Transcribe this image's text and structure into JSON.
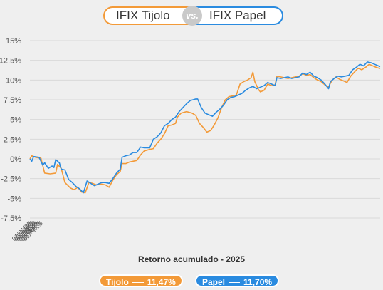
{
  "header": {
    "left_title": "IFIX Tijolo",
    "vs_label": "vs.",
    "right_title": "IFIX Papel"
  },
  "subtitle": "Retorno acumulado - 2025",
  "legend": {
    "tijolo_name": "Tijolo",
    "tijolo_value": "11,47%",
    "papel_name": "Papel",
    "papel_value": "11,70%"
  },
  "colors": {
    "tijolo": "#f39a38",
    "papel": "#2a8be0",
    "grid": "#d9d9d9",
    "axis_text": "#555555"
  },
  "chart_data": {
    "type": "line",
    "title": "",
    "xlabel": "",
    "ylabel": "",
    "x_range": [
      "01/01/25",
      "07/10/25"
    ],
    "ylim": [
      -7.5,
      15
    ],
    "y_ticks": [
      -7.5,
      -5,
      -2.5,
      0,
      2.5,
      5,
      7.5,
      10,
      12.5,
      15
    ],
    "y_tick_labels": [
      "-7,5%",
      "-5%",
      "-2,5%",
      "0%",
      "2,5%",
      "5%",
      "7,5%",
      "10%",
      "12,5%",
      "15%"
    ],
    "x_ticks": [
      "01/01/25",
      "01/02/25",
      "01/03/25",
      "01/04/25",
      "01/05/25",
      "01/06/25",
      "01/07/25"
    ],
    "grid": true,
    "series": [
      {
        "name": "Tijolo",
        "color": "#f39a38",
        "points": [
          [
            "01/01/25",
            0.0
          ],
          [
            "01/02/25",
            0.4
          ],
          [
            "01/04/25",
            0.2
          ],
          [
            "01/07/25",
            0.1
          ],
          [
            "01/09/25",
            -1.8
          ],
          [
            "01/12/25",
            -1.9
          ],
          [
            "01/15/25",
            -1.8
          ],
          [
            "01/16/25",
            -0.7
          ],
          [
            "01/18/25",
            -1.2
          ],
          [
            "01/20/25",
            -3.0
          ],
          [
            "01/23/25",
            -3.7
          ],
          [
            "01/25/25",
            -3.9
          ],
          [
            "01/27/25",
            -3.6
          ],
          [
            "01/29/25",
            -4.2
          ],
          [
            "01/31/25",
            -4.3
          ],
          [
            "02/02/25",
            -3.0
          ],
          [
            "02/04/25",
            -3.1
          ],
          [
            "02/06/25",
            -3.3
          ],
          [
            "02/09/25",
            -3.2
          ],
          [
            "02/11/25",
            -3.3
          ],
          [
            "02/13/25",
            -3.6
          ],
          [
            "02/15/25",
            -2.7
          ],
          [
            "02/17/25",
            -2.0
          ],
          [
            "02/19/25",
            -1.6
          ],
          [
            "02/20/25",
            -0.6
          ],
          [
            "02/22/25",
            -0.6
          ],
          [
            "02/24/25",
            -0.4
          ],
          [
            "02/26/25",
            -0.3
          ],
          [
            "02/28/25",
            -0.2
          ],
          [
            "03/02/25",
            0.5
          ],
          [
            "03/04/25",
            1.0
          ],
          [
            "03/07/25",
            1.2
          ],
          [
            "03/09/25",
            1.3
          ],
          [
            "03/11/25",
            2.0
          ],
          [
            "03/13/25",
            2.5
          ],
          [
            "03/15/25",
            3.2
          ],
          [
            "03/17/25",
            4.2
          ],
          [
            "03/19/25",
            4.3
          ],
          [
            "03/21/25",
            4.5
          ],
          [
            "03/22/25",
            5.3
          ],
          [
            "03/24/25",
            5.8
          ],
          [
            "03/27/25",
            6.0
          ],
          [
            "03/30/25",
            5.8
          ],
          [
            "04/01/25",
            5.5
          ],
          [
            "04/03/25",
            4.5
          ],
          [
            "04/05/25",
            4.0
          ],
          [
            "04/07/25",
            3.4
          ],
          [
            "04/09/25",
            3.6
          ],
          [
            "04/11/25",
            4.3
          ],
          [
            "04/13/25",
            5.2
          ],
          [
            "04/15/25",
            6.5
          ],
          [
            "04/17/25",
            7.5
          ],
          [
            "04/19/25",
            7.9
          ],
          [
            "04/21/25",
            8.0
          ],
          [
            "04/23/25",
            8.1
          ],
          [
            "04/25/25",
            9.5
          ],
          [
            "04/27/25",
            9.8
          ],
          [
            "04/29/25",
            10.0
          ],
          [
            "05/01/25",
            10.3
          ],
          [
            "05/02/25",
            11.0
          ],
          [
            "05/03/25",
            9.8
          ],
          [
            "05/05/25",
            8.8
          ],
          [
            "05/06/25",
            8.5
          ],
          [
            "05/08/25",
            8.7
          ],
          [
            "05/10/25",
            9.5
          ],
          [
            "05/12/25",
            9.3
          ],
          [
            "05/14/25",
            9.4
          ],
          [
            "05/15/25",
            10.5
          ],
          [
            "05/17/25",
            10.4
          ],
          [
            "05/19/25",
            10.3
          ],
          [
            "05/21/25",
            10.2
          ],
          [
            "05/23/25",
            10.3
          ],
          [
            "05/25/25",
            10.4
          ],
          [
            "05/27/25",
            10.5
          ],
          [
            "05/29/25",
            10.8
          ],
          [
            "05/31/25",
            10.6
          ],
          [
            "06/02/25",
            10.7
          ],
          [
            "06/04/25",
            10.3
          ],
          [
            "06/06/25",
            10.0
          ],
          [
            "06/08/25",
            9.8
          ],
          [
            "06/10/25",
            9.4
          ],
          [
            "06/12/25",
            9.1
          ],
          [
            "06/13/25",
            9.6
          ],
          [
            "06/14/25",
            10.0
          ],
          [
            "06/16/25",
            10.4
          ],
          [
            "06/18/25",
            10.1
          ],
          [
            "06/20/25",
            9.9
          ],
          [
            "06/22/25",
            9.7
          ],
          [
            "06/24/25",
            10.5
          ],
          [
            "06/26/25",
            11.0
          ],
          [
            "06/28/25",
            11.5
          ],
          [
            "06/30/25",
            11.3
          ],
          [
            "07/02/25",
            11.6
          ],
          [
            "07/04/25",
            12.0
          ],
          [
            "07/06/25",
            11.8
          ],
          [
            "07/08/25",
            11.6
          ],
          [
            "07/10/25",
            11.47
          ]
        ]
      },
      {
        "name": "Papel",
        "color": "#2a8be0",
        "points": [
          [
            "01/01/25",
            0.0
          ],
          [
            "01/02/25",
            -0.3
          ],
          [
            "01/03/25",
            0.3
          ],
          [
            "01/06/25",
            0.2
          ],
          [
            "01/08/25",
            -0.8
          ],
          [
            "01/09/25",
            -0.5
          ],
          [
            "01/11/25",
            -1.2
          ],
          [
            "01/13/25",
            -0.9
          ],
          [
            "01/14/25",
            -1.1
          ],
          [
            "01/15/25",
            -0.1
          ],
          [
            "01/17/25",
            -0.5
          ],
          [
            "01/18/25",
            -1.3
          ],
          [
            "01/20/25",
            -1.4
          ],
          [
            "01/22/25",
            -2.6
          ],
          [
            "01/24/25",
            -3.0
          ],
          [
            "01/26/25",
            -3.5
          ],
          [
            "01/28/25",
            -3.8
          ],
          [
            "01/30/25",
            -4.3
          ],
          [
            "02/01/25",
            -2.8
          ],
          [
            "02/03/25",
            -3.1
          ],
          [
            "02/05/25",
            -3.4
          ],
          [
            "02/07/25",
            -3.2
          ],
          [
            "02/09/25",
            -3.0
          ],
          [
            "02/11/25",
            -3.0
          ],
          [
            "02/13/25",
            -3.1
          ],
          [
            "02/15/25",
            -2.5
          ],
          [
            "02/17/25",
            -1.8
          ],
          [
            "02/19/25",
            -1.3
          ],
          [
            "02/20/25",
            0.2
          ],
          [
            "02/22/25",
            0.4
          ],
          [
            "02/24/25",
            0.5
          ],
          [
            "02/26/25",
            0.8
          ],
          [
            "02/28/25",
            0.8
          ],
          [
            "03/02/25",
            1.5
          ],
          [
            "03/04/25",
            1.4
          ],
          [
            "03/07/25",
            1.4
          ],
          [
            "03/09/25",
            2.5
          ],
          [
            "03/11/25",
            2.8
          ],
          [
            "03/13/25",
            3.3
          ],
          [
            "03/15/25",
            4.2
          ],
          [
            "03/17/25",
            4.5
          ],
          [
            "03/19/25",
            5.0
          ],
          [
            "03/21/25",
            5.3
          ],
          [
            "03/23/25",
            6.0
          ],
          [
            "03/25/25",
            6.5
          ],
          [
            "03/27/25",
            7.0
          ],
          [
            "03/29/25",
            7.4
          ],
          [
            "04/01/25",
            7.6
          ],
          [
            "04/02/25",
            7.6
          ],
          [
            "04/04/25",
            6.5
          ],
          [
            "04/06/25",
            5.8
          ],
          [
            "04/08/25",
            5.6
          ],
          [
            "04/10/25",
            5.4
          ],
          [
            "04/12/25",
            5.9
          ],
          [
            "04/14/25",
            6.3
          ],
          [
            "04/16/25",
            6.8
          ],
          [
            "04/18/25",
            7.5
          ],
          [
            "04/20/25",
            7.8
          ],
          [
            "04/22/25",
            7.9
          ],
          [
            "04/24/25",
            8.1
          ],
          [
            "04/26/25",
            8.3
          ],
          [
            "04/28/25",
            8.7
          ],
          [
            "04/30/25",
            9.0
          ],
          [
            "05/02/25",
            9.2
          ],
          [
            "05/04/25",
            8.9
          ],
          [
            "05/06/25",
            9.1
          ],
          [
            "05/08/25",
            9.3
          ],
          [
            "05/10/25",
            9.7
          ],
          [
            "05/12/25",
            9.5
          ],
          [
            "05/14/25",
            9.3
          ],
          [
            "05/15/25",
            10.3
          ],
          [
            "05/17/25",
            10.2
          ],
          [
            "05/19/25",
            10.3
          ],
          [
            "05/21/25",
            10.4
          ],
          [
            "05/23/25",
            10.2
          ],
          [
            "05/25/25",
            10.3
          ],
          [
            "05/27/25",
            10.4
          ],
          [
            "05/29/25",
            10.9
          ],
          [
            "05/31/25",
            10.7
          ],
          [
            "06/02/25",
            11.0
          ],
          [
            "06/04/25",
            10.5
          ],
          [
            "06/06/25",
            10.3
          ],
          [
            "06/08/25",
            10.0
          ],
          [
            "06/10/25",
            9.5
          ],
          [
            "06/12/25",
            8.9
          ],
          [
            "06/13/25",
            9.8
          ],
          [
            "06/15/25",
            10.2
          ],
          [
            "06/17/25",
            10.5
          ],
          [
            "06/19/25",
            10.4
          ],
          [
            "06/21/25",
            10.5
          ],
          [
            "06/23/25",
            10.6
          ],
          [
            "06/25/25",
            11.3
          ],
          [
            "06/27/25",
            11.6
          ],
          [
            "06/29/25",
            12.0
          ],
          [
            "07/01/25",
            11.8
          ],
          [
            "07/03/25",
            12.3
          ],
          [
            "07/05/25",
            12.2
          ],
          [
            "07/07/25",
            12.0
          ],
          [
            "07/10/25",
            11.7
          ]
        ]
      }
    ]
  }
}
